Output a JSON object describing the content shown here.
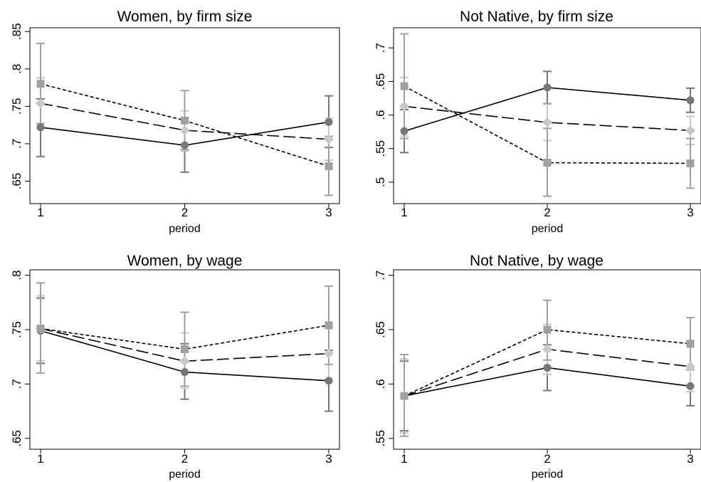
{
  "chart_data": [
    {
      "type": "line",
      "title": "Women, by firm size",
      "xlabel": "period",
      "ylabel": "",
      "x": [
        1,
        2,
        3
      ],
      "xticks": [
        "1",
        "2",
        "3"
      ],
      "ylim": [
        0.62,
        0.855
      ],
      "yticks": [
        0.65,
        0.7,
        0.75,
        0.8,
        0.85
      ],
      "ytick_labels": [
        ".65",
        ".7",
        ".75",
        ".8",
        ".85"
      ],
      "series": [
        {
          "style": "solid",
          "marker": "circle",
          "color": "#777777",
          "values": [
            0.722,
            0.698,
            0.729
          ],
          "ci_low": [
            0.683,
            0.662,
            0.695
          ],
          "ci_high": [
            0.76,
            0.734,
            0.764
          ]
        },
        {
          "style": "long-dash",
          "marker": "diamond",
          "color": "#c8c8c8",
          "values": [
            0.754,
            0.718,
            0.706
          ],
          "ci_low": [
            0.72,
            0.69,
            0.678
          ],
          "ci_high": [
            0.788,
            0.744,
            0.734
          ]
        },
        {
          "style": "short-dash",
          "marker": "square",
          "color": "#a0a0a0",
          "values": [
            0.78,
            0.731,
            0.67
          ],
          "ci_low": [
            0.727,
            0.692,
            0.631
          ],
          "ci_high": [
            0.834,
            0.771,
            0.71
          ]
        }
      ]
    },
    {
      "type": "line",
      "title": "Not Native, by firm size",
      "xlabel": "period",
      "ylabel": "",
      "x": [
        1,
        2,
        3
      ],
      "xticks": [
        "1",
        "2",
        "3"
      ],
      "ylim": [
        0.468,
        0.73
      ],
      "yticks": [
        0.5,
        0.55,
        0.6,
        0.65,
        0.7
      ],
      "ytick_labels": [
        ".5",
        ".55",
        ".6",
        ".65",
        ".7"
      ],
      "series": [
        {
          "style": "solid",
          "marker": "circle",
          "color": "#777777",
          "values": [
            0.576,
            0.641,
            0.622
          ],
          "ci_low": [
            0.544,
            0.617,
            0.604
          ],
          "ci_high": [
            0.608,
            0.665,
            0.64
          ]
        },
        {
          "style": "long-dash",
          "marker": "diamond",
          "color": "#c8c8c8",
          "values": [
            0.613,
            0.589,
            0.577
          ],
          "ci_low": [
            0.569,
            0.562,
            0.556
          ],
          "ci_high": [
            0.656,
            0.616,
            0.598
          ]
        },
        {
          "style": "short-dash",
          "marker": "square",
          "color": "#a0a0a0",
          "values": [
            0.643,
            0.529,
            0.528
          ],
          "ci_low": [
            0.565,
            0.479,
            0.491
          ],
          "ci_high": [
            0.721,
            0.58,
            0.565
          ]
        }
      ]
    },
    {
      "type": "line",
      "title": "Women, by wage",
      "xlabel": "period",
      "ylabel": "",
      "x": [
        1,
        2,
        3
      ],
      "xticks": [
        "1",
        "2",
        "3"
      ],
      "ylim": [
        0.64,
        0.805
      ],
      "yticks": [
        0.65,
        0.7,
        0.75,
        0.8
      ],
      "ytick_labels": [
        ".65",
        ".7",
        ".75",
        ".8"
      ],
      "series": [
        {
          "style": "solid",
          "marker": "circle",
          "color": "#777777",
          "values": [
            0.749,
            0.711,
            0.703
          ],
          "ci_low": [
            0.719,
            0.686,
            0.675
          ],
          "ci_high": [
            0.779,
            0.737,
            0.731
          ]
        },
        {
          "style": "long-dash",
          "marker": "diamond",
          "color": "#c8c8c8",
          "values": [
            0.751,
            0.721,
            0.728
          ],
          "ci_low": [
            0.721,
            0.696,
            0.704
          ],
          "ci_high": [
            0.781,
            0.747,
            0.752
          ]
        },
        {
          "style": "short-dash",
          "marker": "square",
          "color": "#a0a0a0",
          "values": [
            0.751,
            0.732,
            0.754
          ],
          "ci_low": [
            0.71,
            0.698,
            0.718
          ],
          "ci_high": [
            0.793,
            0.766,
            0.79
          ]
        }
      ]
    },
    {
      "type": "line",
      "title": "Not Native, by wage",
      "xlabel": "period",
      "ylabel": "",
      "x": [
        1,
        2,
        3
      ],
      "xticks": [
        "1",
        "2",
        "3"
      ],
      "ylim": [
        0.54,
        0.705
      ],
      "yticks": [
        0.55,
        0.6,
        0.65,
        0.7
      ],
      "ytick_labels": [
        ".55",
        ".6",
        ".65",
        ".7"
      ],
      "series": [
        {
          "style": "solid",
          "marker": "circle",
          "color": "#777777",
          "values": [
            0.589,
            0.615,
            0.598
          ],
          "ci_low": [
            0.557,
            0.594,
            0.58
          ],
          "ci_high": [
            0.621,
            0.636,
            0.616
          ]
        },
        {
          "style": "long-dash",
          "marker": "diamond",
          "color": "#c8c8c8",
          "values": [
            0.589,
            0.632,
            0.616
          ],
          "ci_low": [
            0.555,
            0.609,
            0.593
          ],
          "ci_high": [
            0.623,
            0.655,
            0.639
          ]
        },
        {
          "style": "short-dash",
          "marker": "square",
          "color": "#a0a0a0",
          "values": [
            0.589,
            0.65,
            0.637
          ],
          "ci_low": [
            0.552,
            0.622,
            0.613
          ],
          "ci_high": [
            0.627,
            0.677,
            0.661
          ]
        }
      ]
    }
  ]
}
